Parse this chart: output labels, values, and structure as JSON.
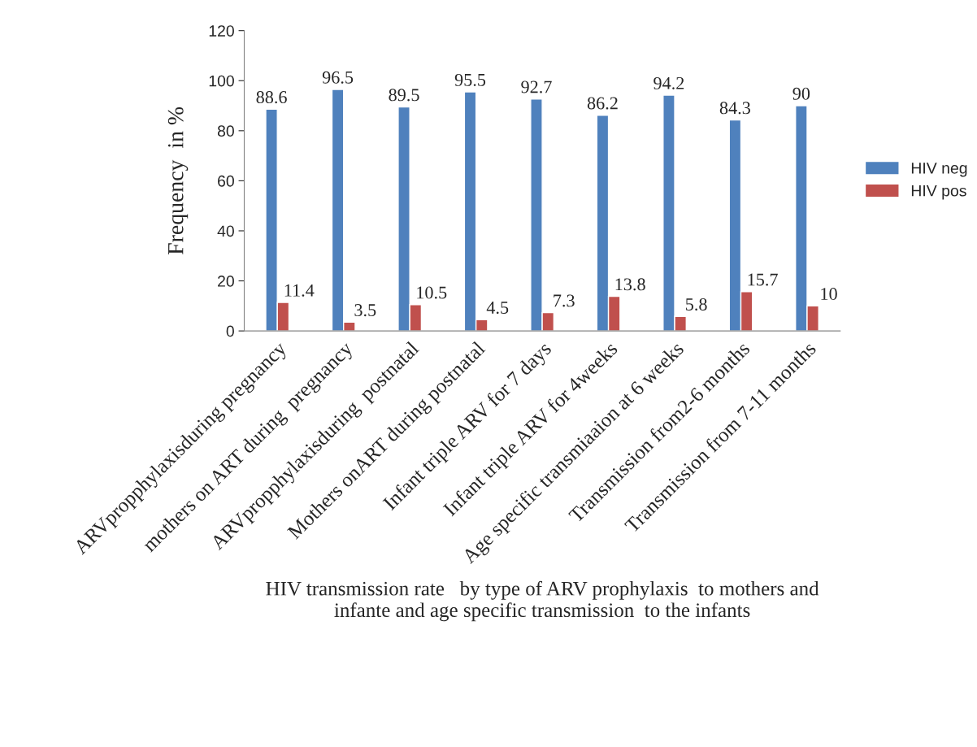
{
  "chart_data": {
    "type": "bar",
    "xlabel": "HIV transmission rate   by type of ARV prophylaxis  to mothers and\ninfante and age specific transmission  to the infants",
    "ylabel": "Frequency  in %",
    "categories": [
      "ARVpropphylaxisduring pregnancy",
      "mothers on ART during  pregnancy",
      "ARVpropphylaxisduring  postnatal",
      "Mothers onART during postnatal",
      "Infant triple ARV for 7 days",
      "Infant triple ARV for 4weeks",
      "Age specific transmiaaion at 6 weeks",
      "Transmission from2-6 months",
      "Transmission from 7-11 months"
    ],
    "series": [
      {
        "name": "HIV neg",
        "color": "#4f81bd",
        "values": [
          88.6,
          96.5,
          89.5,
          95.5,
          92.7,
          86.2,
          94.2,
          84.3,
          90
        ]
      },
      {
        "name": "HIV pos",
        "color": "#c0504d",
        "values": [
          11.4,
          3.5,
          10.5,
          4.5,
          7.3,
          13.8,
          5.8,
          15.7,
          10
        ]
      }
    ],
    "ylim": [
      0,
      120
    ],
    "yticks": [
      0,
      20,
      40,
      60,
      80,
      100,
      120
    ],
    "data_labels": true,
    "legend": "right",
    "grid": false
  }
}
